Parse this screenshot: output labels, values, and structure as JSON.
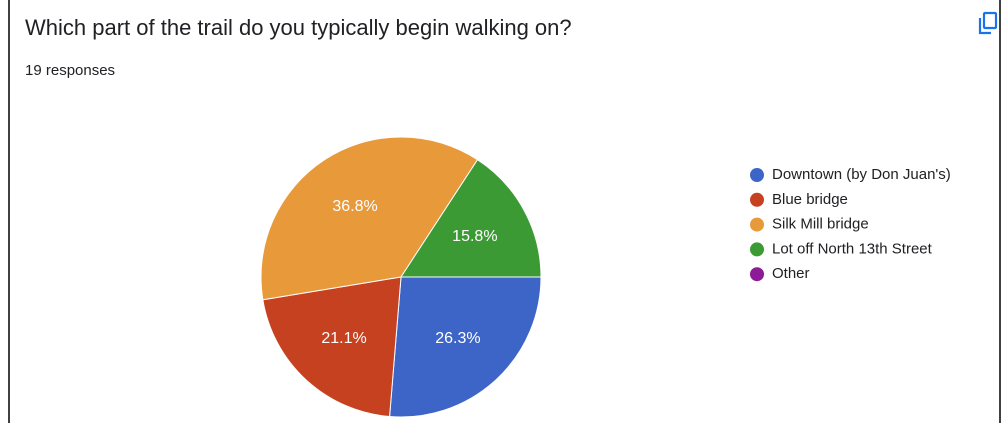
{
  "chart_data": {
    "type": "pie",
    "title": "Which part of the trail do you typically begin walking on?",
    "subtitle": "19 responses",
    "categories": [
      "Downtown (by Don Juan's)",
      "Blue bridge",
      "Silk Mill bridge",
      "Lot off North 13th Street",
      "Other"
    ],
    "values": [
      26.3,
      21.1,
      36.8,
      15.8,
      0
    ],
    "value_labels": [
      "26.3%",
      "21.1%",
      "36.8%",
      "15.8%",
      null
    ],
    "colors": [
      "#3d65c8",
      "#c5411f",
      "#e8993a",
      "#3c9a34",
      "#8d1b98"
    ],
    "legend": "right"
  }
}
